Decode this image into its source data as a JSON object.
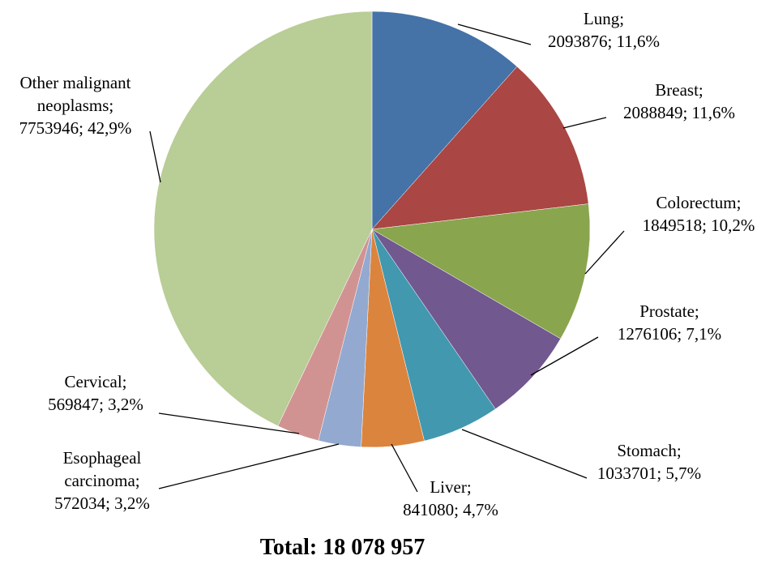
{
  "chart_data": {
    "type": "pie",
    "slices": [
      {
        "name": "Lung",
        "value": 2093876,
        "percent": "11,6%",
        "color": "#4572A7",
        "label_lines": [
          "Lung;",
          "2093876; 11,6%"
        ]
      },
      {
        "name": "Breast",
        "value": 2088849,
        "percent": "11,6%",
        "color": "#AA4643",
        "label_lines": [
          "Breast;",
          "2088849; 11,6%"
        ]
      },
      {
        "name": "Colorectum",
        "value": 1849518,
        "percent": "10,2%",
        "color": "#89A54E",
        "label_lines": [
          "Colorectum;",
          "1849518; 10,2%"
        ]
      },
      {
        "name": "Prostate",
        "value": 1276106,
        "percent": "7,1%",
        "color": "#71588F",
        "label_lines": [
          "Prostate;",
          "1276106; 7,1%"
        ]
      },
      {
        "name": "Stomach",
        "value": 1033701,
        "percent": "5,7%",
        "color": "#4198AF",
        "label_lines": [
          "Stomach;",
          "1033701; 5,7%"
        ]
      },
      {
        "name": "Liver",
        "value": 841080,
        "percent": "4,7%",
        "color": "#DB843D",
        "label_lines": [
          "Liver;",
          "841080; 4,7%"
        ]
      },
      {
        "name": "Esophageal carcinoma",
        "value": 572034,
        "percent": "3,2%",
        "color": "#93A9CF",
        "label_lines": [
          "Esophageal",
          "carcinoma;",
          "572034; 3,2%"
        ]
      },
      {
        "name": "Cervical",
        "value": 569847,
        "percent": "3,2%",
        "color": "#D19392",
        "label_lines": [
          "Cervical;",
          "569847; 3,2%"
        ]
      },
      {
        "name": "Other malignant neoplasms",
        "value": 7753946,
        "percent": "42,9%",
        "color": "#B9CD96",
        "label_lines": [
          "Other malignant",
          "neoplasms;",
          "7753946; 42,9%"
        ]
      }
    ],
    "total_label": "Total: 18 078 957"
  }
}
